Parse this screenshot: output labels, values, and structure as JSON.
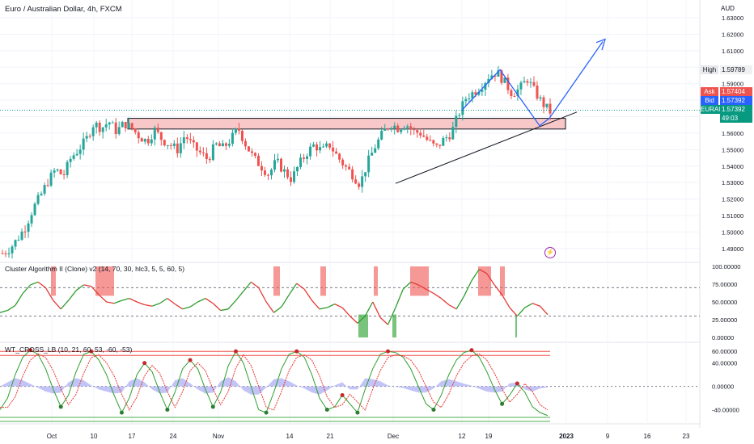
{
  "header": {
    "title": "Euro / Australian Dollar, 4h, FXCM",
    "currency": "AUD"
  },
  "price_scale": {
    "labels": [
      "1.63000",
      "1.62000",
      "1.61000",
      "1.60000",
      "1.59000",
      "1.58000",
      "1.57000",
      "1.56000",
      "1.55000",
      "1.54000",
      "1.53000",
      "1.52000",
      "1.51000",
      "1.50000",
      "1.49000"
    ],
    "high_label": "High",
    "high_value": "1.59789",
    "ask_label": "Ask",
    "ask_value": "1.57404",
    "bid_label": "Bid",
    "bid_value": "1.57392",
    "symbol_label": "EURAUD",
    "last_value": "1.57392",
    "countdown": "49:03"
  },
  "indicator1": {
    "title": "Cluster Algorithm II (Clone) v2 (14, 70, 30, hlc3, 5, 5, 60, 5)",
    "labels": [
      "100.00000",
      "75.00000",
      "50.00000",
      "25.00000",
      "0.00000"
    ]
  },
  "indicator2": {
    "title": "WT_CROSS_LB (10, 21, 60, 53, -60, -53)",
    "labels": [
      "60.00000",
      "40.00000",
      "0.00000",
      "-40.00000"
    ]
  },
  "time_axis": {
    "labels": [
      "Oct",
      "10",
      "17",
      "24",
      "Nov",
      "14",
      "21",
      "Dec",
      "12",
      "19",
      "2023",
      "9",
      "16",
      "23"
    ]
  },
  "colors": {
    "up": "#26a69a",
    "down": "#ef5350",
    "zone": "#f8c8c8",
    "arrow": "#2962ff",
    "green_line": "#2e9e2e",
    "red_line": "#e53935",
    "blue_fill": "#b3b5f5"
  },
  "chart_data": {
    "type": "candlestick",
    "series_name": "EURAUD",
    "ylim": [
      1.485,
      1.632
    ],
    "close_path": [
      1.487,
      1.49,
      1.496,
      1.503,
      1.514,
      1.522,
      1.531,
      1.538,
      1.534,
      1.545,
      1.55,
      1.556,
      1.566,
      1.563,
      1.567,
      1.561,
      1.566,
      1.563,
      1.558,
      1.555,
      1.562,
      1.556,
      1.553,
      1.55,
      1.559,
      1.552,
      1.548,
      1.544,
      1.553,
      1.551,
      1.556,
      1.563,
      1.553,
      1.545,
      1.54,
      1.535,
      1.543,
      1.537,
      1.532,
      1.541,
      1.548,
      1.553,
      1.549,
      1.553,
      1.546,
      1.54,
      1.535,
      1.529,
      1.542,
      1.552,
      1.56,
      1.566,
      1.563,
      1.566,
      1.561,
      1.56,
      1.555,
      1.551,
      1.556,
      1.56,
      1.572,
      1.582,
      1.585,
      1.589,
      1.595,
      1.597,
      1.591,
      1.584,
      1.587,
      1.593,
      1.585,
      1.578,
      1.573
    ],
    "support_zone": {
      "low": 1.5625,
      "high": 1.569
    },
    "trendline": [
      [
        1.5295,
        0
      ],
      [
        1.5728,
        1
      ]
    ],
    "indicator1": {
      "ylim": [
        0,
        100
      ],
      "levels": [
        70,
        30
      ],
      "values": [
        35,
        38,
        45,
        62,
        74,
        78,
        70,
        52,
        40,
        52,
        66,
        74,
        72,
        60,
        50,
        48,
        52,
        55,
        50,
        46,
        44,
        48,
        55,
        47,
        40,
        43,
        50,
        55,
        48,
        38,
        40,
        52,
        65,
        78,
        70,
        50,
        35,
        43,
        60,
        76,
        68,
        52,
        40,
        42,
        47,
        42,
        30,
        20,
        30,
        50,
        28,
        18,
        42,
        68,
        78,
        74,
        68,
        62,
        55,
        46,
        40,
        58,
        80,
        96,
        90,
        74,
        60,
        42,
        30,
        42,
        48,
        44,
        32
      ],
      "hist_high": [
        [
          63,
          69
        ],
        [
          118,
          141
        ],
        [
          338,
          346
        ],
        [
          396,
          403
        ],
        [
          462,
          467
        ],
        [
          507,
          530
        ],
        [
          591,
          607
        ],
        [
          618,
          624
        ]
      ],
      "hist_low": [
        [
          443,
          455
        ],
        [
          485,
          490
        ],
        [
          637,
          638
        ]
      ]
    },
    "indicator2": {
      "ylim": [
        -60,
        70
      ],
      "levels": [
        60,
        53,
        -60,
        -53
      ],
      "values": [
        -40,
        -20,
        20,
        50,
        62,
        55,
        30,
        -5,
        -35,
        -15,
        25,
        55,
        60,
        45,
        20,
        -15,
        -45,
        -20,
        20,
        40,
        25,
        -10,
        -40,
        -10,
        30,
        45,
        30,
        -5,
        -35,
        -10,
        35,
        60,
        40,
        0,
        -40,
        -45,
        -10,
        30,
        55,
        60,
        50,
        20,
        -20,
        -40,
        -35,
        -15,
        -30,
        -45,
        -5,
        30,
        55,
        60,
        58,
        50,
        30,
        0,
        -30,
        -40,
        -15,
        20,
        45,
        58,
        62,
        50,
        25,
        -5,
        -30,
        -15,
        5,
        -10,
        -35,
        -45,
        -50
      ]
    }
  }
}
